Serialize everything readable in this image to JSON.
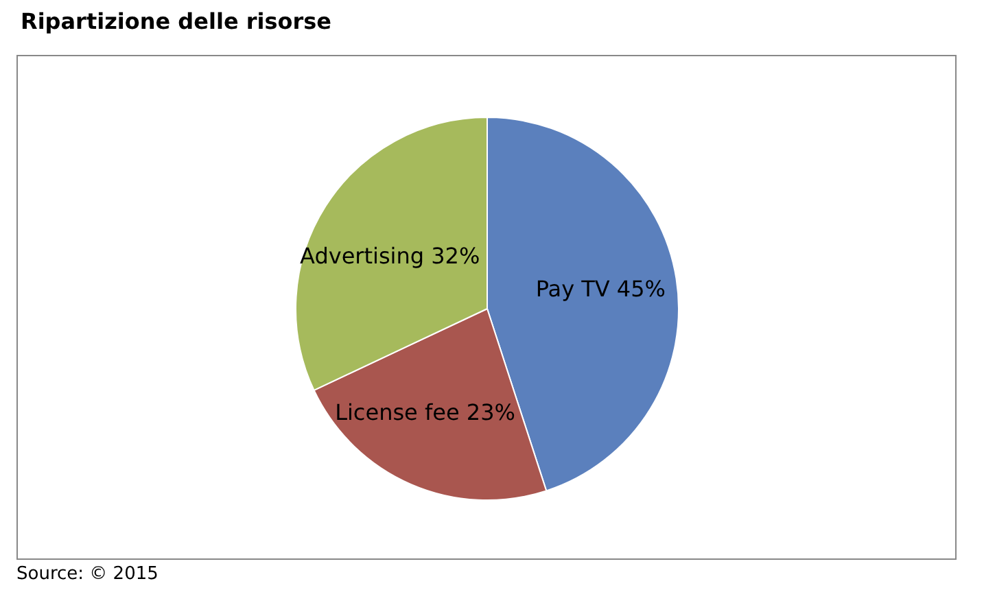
{
  "chart_data": {
    "type": "pie",
    "title": "Ripartizione delle risorse",
    "categories": [
      "Pay TV",
      "License fee",
      "Advertising"
    ],
    "values": [
      45,
      23,
      32
    ],
    "colors": [
      "#5b80bd",
      "#a9564f",
      "#a6ba5c"
    ],
    "value_labels": [
      "45%",
      "23%",
      "32%"
    ],
    "legend": false,
    "annotations": [
      "Source: © 2015"
    ]
  }
}
